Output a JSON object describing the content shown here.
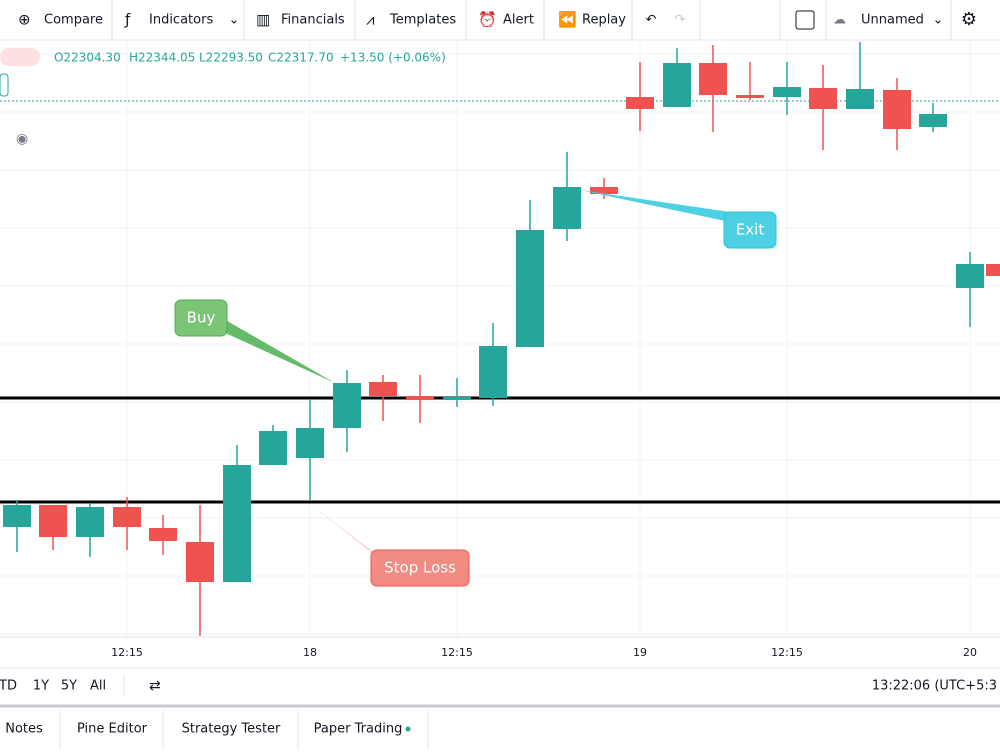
{
  "toolbar": {
    "items": [
      "Compare",
      "Indicators",
      "Financials",
      "Templates",
      "Alert",
      "Replay"
    ],
    "layout_name": "Unnamed"
  },
  "legend": {
    "open": "O22304.30",
    "high": "H22344.05",
    "low": "L22293.50",
    "close": "C22317.70",
    "change": "+13.50 (+0.06%)"
  },
  "annotations": {
    "buy": "Buy",
    "exit": "Exit",
    "stop_loss": "Stop Loss"
  },
  "time_axis": [
    "12:15",
    "18",
    "12:15",
    "19",
    "12:15",
    "20"
  ],
  "range_bar": {
    "buttons": [
      "TD",
      "1Y",
      "5Y",
      "All"
    ],
    "clock": "13:22:06 (UTC+5:3"
  },
  "tabs": [
    "Notes",
    "Pine Editor",
    "Strategy Tester",
    "Paper Trading"
  ]
}
